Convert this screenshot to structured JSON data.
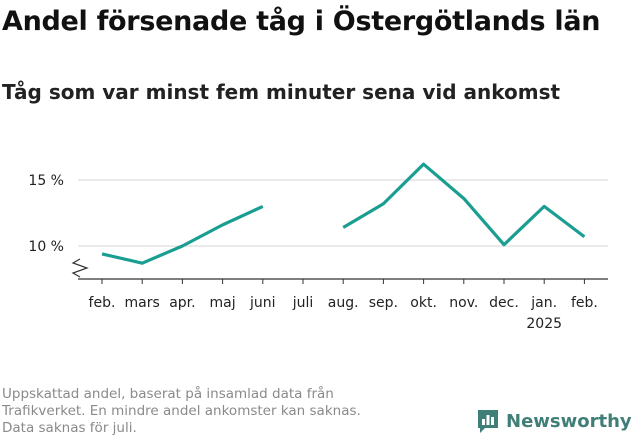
{
  "header": {
    "title": "Andel försenade tåg i Östergötlands län",
    "subtitle": "Tåg som var minst fem minuter sena vid ankomst"
  },
  "footnote": [
    "Uppskattad andel, baserat på insamlad data från",
    "Trafikverket. En mindre andel ankomster kan saknas.",
    "Data saknas för juli."
  ],
  "brand": {
    "name": "Newsworthy",
    "icon": "bar-chart-logo-icon",
    "color": "#3f7f77"
  },
  "chart_data": {
    "type": "line",
    "title": "Andel försenade tåg i Östergötlands län",
    "subtitle": "Tåg som var minst fem minuter sena vid ankomst",
    "categories": [
      "feb.",
      "mars",
      "apr.",
      "maj",
      "juni",
      "juli",
      "aug.",
      "sep.",
      "okt.",
      "nov.",
      "dec.",
      "jan.",
      "feb."
    ],
    "year_label": "2025",
    "year_label_under": 11,
    "series": [
      {
        "values": [
          9.4,
          8.7,
          10.0,
          11.6,
          13.0,
          null,
          11.4,
          13.2,
          16.2,
          13.6,
          10.1,
          13.0,
          10.7
        ],
        "color": "#1a9e92"
      }
    ],
    "yticks": [
      10,
      15
    ],
    "ytick_labels": [
      "10 %",
      "15 %"
    ],
    "ylim": [
      7.5,
      17
    ],
    "ybreak": true,
    "grid": true,
    "legend": "none"
  }
}
